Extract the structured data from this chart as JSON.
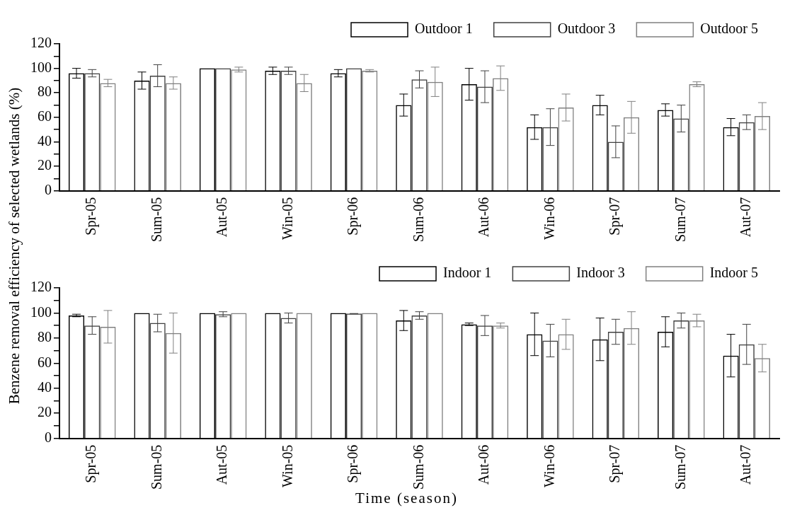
{
  "chart_data": [
    {
      "type": "bar",
      "ylabel": "Benzene removal efficiency of selected wetlands (%)",
      "categories": [
        "Spr-05",
        "Sum-05",
        "Aut-05",
        "Win-05",
        "Spr-06",
        "Sum-06",
        "Aut-06",
        "Win-06",
        "Spr-07",
        "Sum-07",
        "Aut-07"
      ],
      "series": [
        {
          "name": "Outdoor 1",
          "color": "#000000",
          "values": [
            96,
            90,
            100,
            98,
            96,
            70,
            87,
            52,
            70,
            66,
            52
          ],
          "errors": [
            4,
            7,
            null,
            3,
            3,
            9,
            13,
            10,
            8,
            5,
            7
          ]
        },
        {
          "name": "Outdoor 3",
          "color": "#404040",
          "values": [
            96,
            94,
            100,
            98,
            100,
            91,
            85,
            52,
            40,
            59,
            56
          ],
          "errors": [
            3,
            9,
            null,
            3,
            null,
            7,
            13,
            15,
            13,
            11,
            6
          ]
        },
        {
          "name": "Outdoor 5",
          "color": "#808080",
          "values": [
            88,
            88,
            99,
            88,
            98,
            89,
            92,
            68,
            60,
            87,
            61
          ],
          "errors": [
            3,
            5,
            2,
            7,
            1,
            12,
            10,
            11,
            13,
            2,
            11
          ]
        }
      ],
      "ylim": [
        0,
        120
      ],
      "yticks": [
        0,
        {
          "value": 10,
          "label": null
        },
        20,
        {
          "value": 30,
          "label": null
        },
        40,
        {
          "value": 50,
          "label": null
        },
        60,
        {
          "value": 70,
          "label": null
        },
        80,
        {
          "value": 90,
          "label": null
        },
        100,
        {
          "value": 110,
          "label": null
        },
        120
      ],
      "legend": "top"
    },
    {
      "type": "bar",
      "xlabel": "Time (season)",
      "categories": [
        "Spr-05",
        "Sum-05",
        "Aut-05",
        "Win-05",
        "Spr-06",
        "Sum-06",
        "Aut-06",
        "Win-06",
        "Spr-07",
        "Sum-07",
        "Aut-07"
      ],
      "series": [
        {
          "name": "Indoor 1",
          "color": "#000000",
          "values": [
            98,
            100,
            100,
            100,
            100,
            94,
            91,
            83,
            79,
            85,
            66
          ],
          "errors": [
            1,
            null,
            null,
            null,
            null,
            8,
            1,
            17,
            17,
            12,
            17
          ]
        },
        {
          "name": "Indoor 3",
          "color": "#404040",
          "values": [
            90,
            92,
            99,
            96,
            99.5,
            98,
            90,
            78,
            85,
            94,
            75
          ],
          "errors": [
            7,
            7,
            2,
            4,
            0,
            3,
            8,
            13,
            10,
            6,
            16
          ]
        },
        {
          "name": "Indoor 5",
          "color": "#808080",
          "values": [
            89,
            84,
            100,
            100,
            100,
            100,
            90,
            83,
            88,
            94,
            64
          ],
          "errors": [
            13,
            16,
            null,
            null,
            null,
            null,
            2,
            12,
            13,
            5,
            11
          ]
        }
      ],
      "ylim": [
        0,
        120
      ],
      "yticks": [
        0,
        {
          "value": 10,
          "label": null
        },
        20,
        {
          "value": 30,
          "label": null
        },
        40,
        {
          "value": 50,
          "label": null
        },
        60,
        {
          "value": 70,
          "label": null
        },
        80,
        {
          "value": 90,
          "label": null
        },
        100,
        {
          "value": 110,
          "label": null
        },
        120
      ],
      "legend": "top"
    }
  ]
}
